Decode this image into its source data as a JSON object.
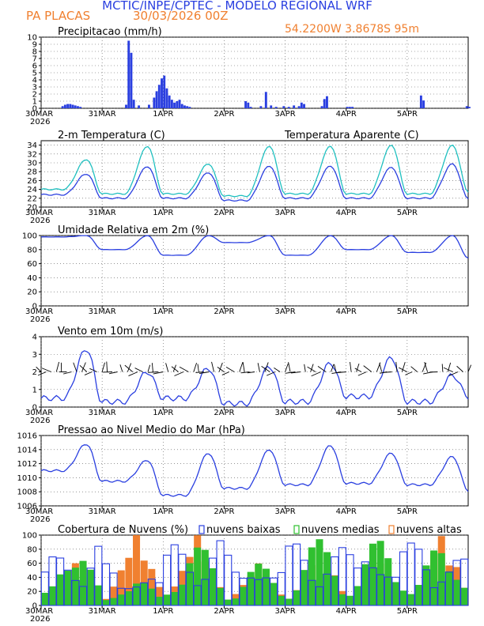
{
  "header": {
    "title": "MCTIC/INPE/CPTEC - MODELO REGIONAL WRF",
    "location": "PA PLACAS",
    "run": "30/03/2026 00Z",
    "coords": "54.2200W 3.8678S 95m"
  },
  "colors": {
    "blue": "#2a3fe0",
    "cyan": "#20c0c0",
    "orange": "#f08030",
    "green": "#30c030",
    "black": "#000000"
  },
  "x_axis": {
    "ticks": [
      "30MAR",
      "31MAR",
      "1APR",
      "2APR",
      "3APR",
      "4APR",
      "5APR"
    ],
    "year": "2026"
  },
  "chart_data": [
    {
      "type": "bar",
      "title": "Precipitacao (mm/h)",
      "yticks": [
        "0",
        "1",
        "2",
        "3",
        "4",
        "5",
        "6",
        "7",
        "8",
        "9",
        "10"
      ],
      "ylim": [
        0,
        10
      ],
      "hours": [
        8,
        9,
        10,
        11,
        12,
        13,
        14,
        15,
        33,
        34,
        35,
        36,
        38,
        42,
        44,
        45,
        46,
        47,
        48,
        49,
        50,
        51,
        52,
        53,
        54,
        55,
        56,
        57,
        58,
        80,
        81,
        82,
        86,
        88,
        90,
        92,
        95,
        97,
        99,
        101,
        102,
        103,
        110,
        111,
        112,
        120,
        121,
        122,
        149,
        150,
        167,
        168
      ],
      "values": [
        0.3,
        0.5,
        0.6,
        0.6,
        0.5,
        0.4,
        0.3,
        0.2,
        0.5,
        9.5,
        7.8,
        1.2,
        0.4,
        0.5,
        1.5,
        2.4,
        3.3,
        4.2,
        4.6,
        2.8,
        1.8,
        1.2,
        0.8,
        1.0,
        1.2,
        0.6,
        0.4,
        0.3,
        0.2,
        1.0,
        0.8,
        0.2,
        0.3,
        2.3,
        0.4,
        0.2,
        0.3,
        0.2,
        0.4,
        0.3,
        0.8,
        0.6,
        0.3,
        1.3,
        1.7,
        0.2,
        0.2,
        0.2,
        1.8,
        1.1,
        0.3,
        0.2
      ]
    },
    {
      "type": "line",
      "title": "2-m Temperatura (C)",
      "title_right": "Temperatura Aparente (C)",
      "yticks": [
        "20",
        "22",
        "24",
        "26",
        "28",
        "30",
        "32",
        "34"
      ],
      "ylim": [
        20,
        35
      ],
      "series": [
        {
          "name": "2-m Temperatura (C)",
          "color": "#2a3fe0",
          "tmin": [
            22.8,
            22.0,
            22.0,
            21.5,
            22.0,
            22.0,
            22.0,
            22.0
          ],
          "tmax": [
            27.5,
            29.2,
            27.8,
            29.3,
            29.3,
            29.0,
            29.8
          ]
        },
        {
          "name": "Temperatura Aparente (C)",
          "color": "#20c0c0",
          "tmin": [
            24.0,
            23.0,
            23.0,
            22.5,
            23.0,
            23.0,
            23.0,
            23.5
          ],
          "tmax": [
            30.8,
            33.8,
            29.8,
            33.8,
            33.8,
            34.0,
            34.0
          ]
        }
      ]
    },
    {
      "type": "line",
      "title": "Umidade Relativa em 2m (%)",
      "yticks": [
        "0",
        "20",
        "40",
        "60",
        "80",
        "100"
      ],
      "ylim": [
        0,
        100
      ],
      "series": [
        {
          "name": "Umidade Relativa",
          "color": "#2a3fe0",
          "tmin": [
            98,
            80,
            72,
            90,
            72,
            80,
            76,
            68
          ],
          "tmax": [
            100,
            100,
            100,
            100,
            100,
            100,
            100
          ]
        }
      ]
    },
    {
      "type": "line",
      "title": "Vento em 10m (m/s)",
      "yticks": [
        "0",
        "1",
        "2",
        "3",
        "4"
      ],
      "ylim": [
        0,
        4
      ],
      "wind_barb_level": 2,
      "series": [
        {
          "name": "Vento",
          "color": "#2a3fe0",
          "tmin": [
            0.5,
            0.3,
            0.5,
            0.2,
            0.3,
            0.6,
            0.3,
            0.6
          ],
          "tmax": [
            3.3,
            2.0,
            2.2,
            2.3,
            2.5,
            2.8,
            1.8
          ]
        }
      ]
    },
    {
      "type": "line",
      "title": "Pressao ao Nivel Medio do Mar (hPa)",
      "yticks": [
        "1006",
        "1008",
        "1010",
        "1012",
        "1014",
        "1016"
      ],
      "ylim": [
        1006,
        1016
      ],
      "series": [
        {
          "name": "Pressao",
          "color": "#2a3fe0",
          "tmin": [
            1011,
            1009.5,
            1007.5,
            1008.5,
            1009,
            1009.2,
            1009,
            1008.2
          ],
          "tmax": [
            1014.8,
            1012.5,
            1013.5,
            1014,
            1014.6,
            1013.5,
            1013
          ]
        }
      ]
    },
    {
      "type": "bar",
      "title": "Cobertura de Nuvens (%)",
      "legend": [
        "nuvens baixas",
        "nuvens medias",
        "nuvens altas"
      ],
      "yticks": [
        "0",
        "20",
        "40",
        "60",
        "80",
        "100"
      ],
      "ylim": [
        0,
        100
      ],
      "baixas_max": [
        95,
        60,
        100,
        80,
        95,
        100,
        90,
        85
      ],
      "medias_max": [
        90,
        40,
        90,
        60,
        95,
        100,
        95,
        90
      ],
      "altas_max": [
        60,
        100,
        100,
        60,
        80,
        60,
        100,
        70
      ]
    }
  ]
}
